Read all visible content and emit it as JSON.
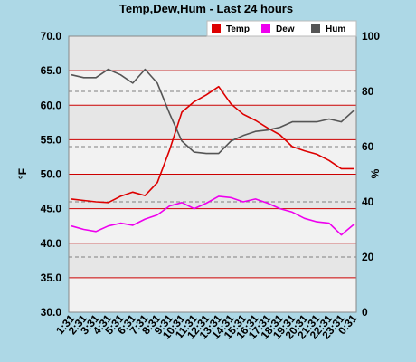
{
  "chart_data": {
    "type": "line",
    "title": "Temp,Dew,Hum - Last 24 hours",
    "ylabel_left": "°F",
    "ylabel_right": "%",
    "left_axis": {
      "min": 30.0,
      "max": 70.0,
      "ticks": [
        "30.0",
        "35.0",
        "40.0",
        "45.0",
        "50.0",
        "55.0",
        "60.0",
        "65.0",
        "70.0"
      ]
    },
    "right_axis": {
      "min": 0,
      "max": 100,
      "ticks": [
        "0",
        "20",
        "40",
        "60",
        "80",
        "100"
      ]
    },
    "x": [
      "1:31",
      "2:31",
      "3:31",
      "4:31",
      "5:31",
      "6:31",
      "7:31",
      "8:31",
      "9:31",
      "10:31",
      "11:31",
      "12:31",
      "13:31",
      "14:31",
      "15:31",
      "16:31",
      "17:31",
      "18:31",
      "19:31",
      "20:31",
      "21:31",
      "22:31",
      "23:31",
      "0:31"
    ],
    "legend": {
      "position": "top-right",
      "items": [
        "Temp",
        "Dew",
        "Hum"
      ]
    },
    "series": [
      {
        "name": "Temp",
        "axis": "left",
        "color": "#dd0000",
        "values": [
          46.4,
          46.2,
          46.0,
          45.9,
          46.8,
          47.4,
          46.9,
          48.8,
          53.5,
          59.0,
          60.5,
          61.5,
          62.7,
          60.2,
          58.7,
          57.8,
          56.7,
          55.7,
          54.0,
          53.4,
          52.9,
          52.0,
          50.8,
          50.8
        ]
      },
      {
        "name": "Dew",
        "axis": "left",
        "color": "#ee00ee",
        "values": [
          42.5,
          42.0,
          41.7,
          42.5,
          42.9,
          42.6,
          43.5,
          44.1,
          45.4,
          45.9,
          45.0,
          45.8,
          46.8,
          46.6,
          46.0,
          46.4,
          45.8,
          45.0,
          44.5,
          43.6,
          43.1,
          42.9,
          41.2,
          42.7
        ]
      },
      {
        "name": "Hum",
        "axis": "right",
        "color": "#555555",
        "values": [
          86,
          85,
          85,
          88,
          86,
          83,
          88,
          83,
          72,
          62,
          58,
          57.5,
          57.5,
          62,
          64,
          65.5,
          66,
          67,
          69,
          69,
          69,
          70,
          69,
          73
        ]
      }
    ],
    "grid": true
  },
  "colors": {
    "page_background": "#add8e6",
    "plot_background": "#f2f2f2",
    "band_color": "#e6e6e6",
    "red_gridline": "#cc0000",
    "dashed_gridline": "#808080",
    "axis_text": "#000000"
  }
}
